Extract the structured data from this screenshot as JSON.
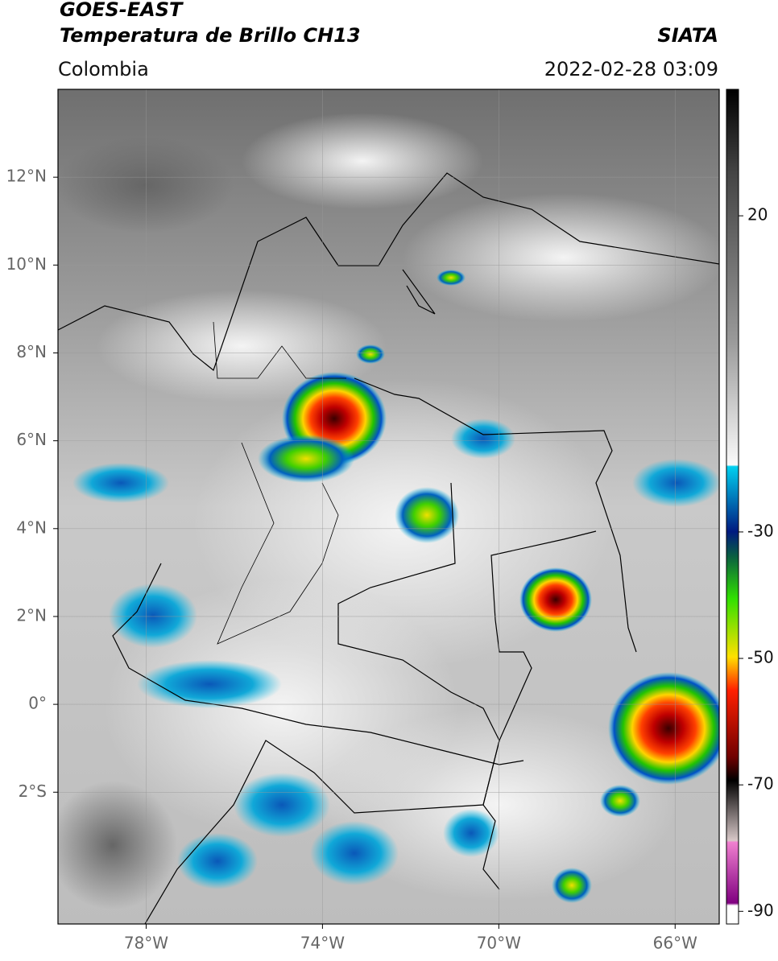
{
  "header": {
    "satellite": "GOES-EAST",
    "product": "Temperatura de Brillo CH13",
    "agency": "SIATA",
    "region": "Colombia",
    "timestamp": "2022-02-28 03:09"
  },
  "map": {
    "xlim": [
      -80,
      -65
    ],
    "ylim": [
      -5,
      14
    ],
    "xticks": [
      {
        "value": -78,
        "label": "78°W"
      },
      {
        "value": -74,
        "label": "74°W"
      },
      {
        "value": -70,
        "label": "70°W"
      },
      {
        "value": -66,
        "label": "66°W"
      }
    ],
    "yticks": [
      {
        "value": 12,
        "label": "12°N"
      },
      {
        "value": 10,
        "label": "10°N"
      },
      {
        "value": 8,
        "label": "8°N"
      },
      {
        "value": 6,
        "label": "6°N"
      },
      {
        "value": 4,
        "label": "4°N"
      },
      {
        "value": 2,
        "label": "2°N"
      },
      {
        "value": 0,
        "label": "0°"
      },
      {
        "value": -2,
        "label": "2°S"
      }
    ],
    "grid": true
  },
  "colorbar": {
    "lim": [
      -92,
      40
    ],
    "ticks": [
      20,
      -30,
      -50,
      -70,
      -90
    ]
  }
}
